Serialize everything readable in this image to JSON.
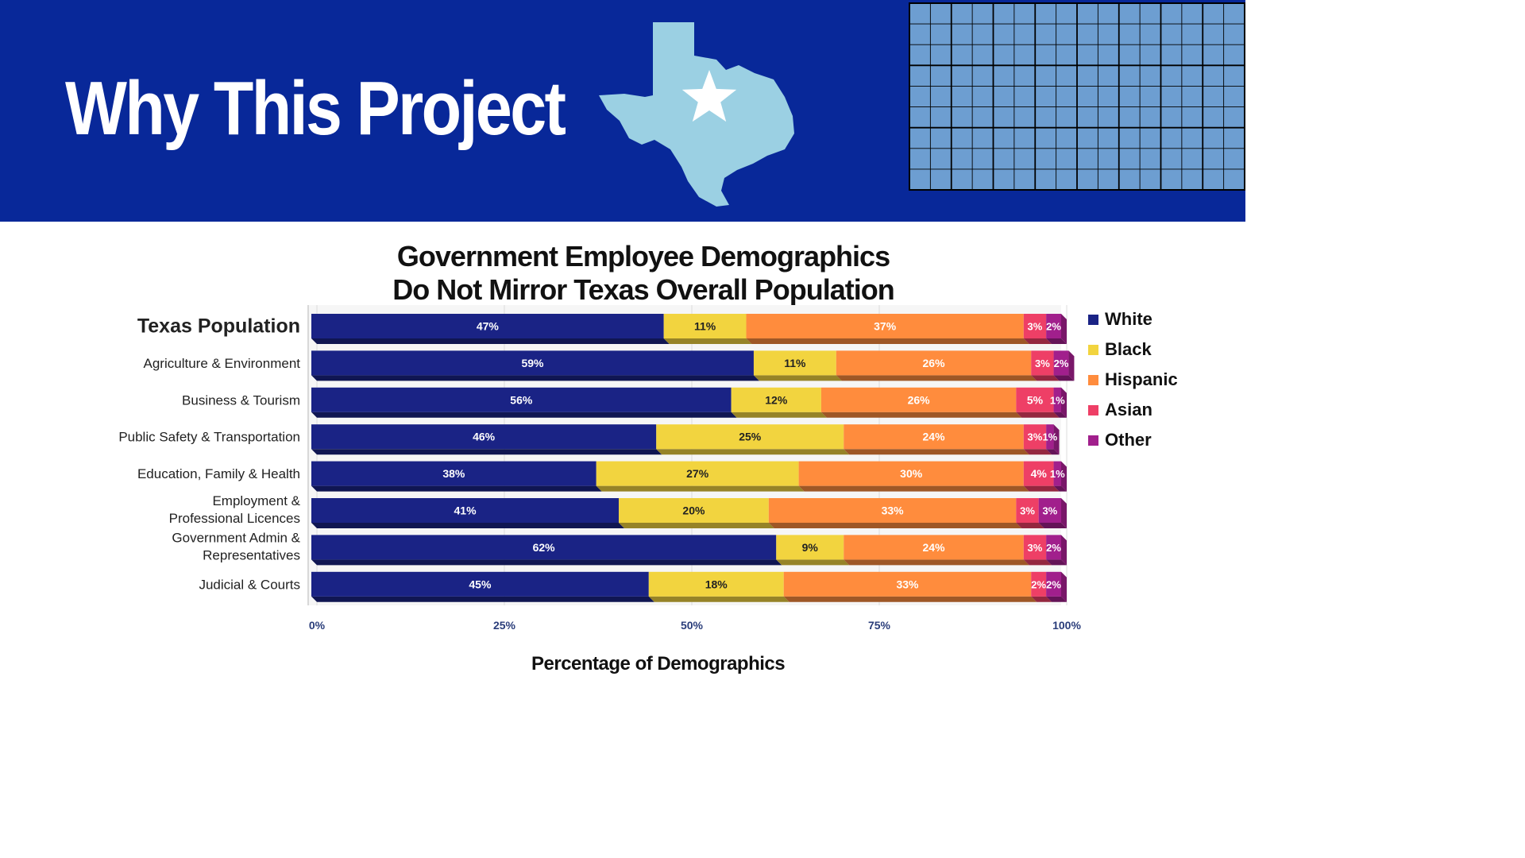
{
  "header": {
    "title": "Why This Project"
  },
  "colors": {
    "header_bg": "#082899",
    "texas_map": "#9bd0e3",
    "grid_fill": "#6d9ed1"
  },
  "icons": {
    "state": "texas-map-icon",
    "star": "star-icon",
    "grid": "grid-icon"
  },
  "chart_data": {
    "type": "bar",
    "orientation": "horizontal",
    "stacked": true,
    "title_line1": "Government Employee Demographics",
    "title_line2": "Do Not Mirror Texas Overall Population",
    "xlabel": "Percentage of Demographics",
    "ylabel": "",
    "xlim": [
      0,
      100
    ],
    "xticks": [
      "0%",
      "25%",
      "50%",
      "75%",
      "100%"
    ],
    "legend_position": "right",
    "categories": [
      "Texas Population",
      "Agriculture & Environment",
      "Business & Tourism",
      "Public Safety & Transportation",
      "Education, Family & Health",
      "Employment & Professional Licences",
      "Government Admin & Representatives",
      "Judicial & Courts"
    ],
    "series": [
      {
        "name": "White",
        "color": "#1a2385",
        "values": [
          47,
          59,
          56,
          46,
          38,
          41,
          62,
          45
        ]
      },
      {
        "name": "Black",
        "color": "#f2d43f",
        "values": [
          11,
          11,
          12,
          25,
          27,
          20,
          9,
          18
        ]
      },
      {
        "name": "Hispanic",
        "color": "#ff8c3d",
        "values": [
          37,
          26,
          26,
          24,
          30,
          33,
          24,
          33
        ]
      },
      {
        "name": "Asian",
        "color": "#ee3f66",
        "values": [
          3,
          3,
          5,
          3,
          4,
          3,
          3,
          2
        ]
      },
      {
        "name": "Other",
        "color": "#a11f8c",
        "values": [
          2,
          2,
          1,
          1,
          1,
          3,
          2,
          2
        ]
      }
    ]
  }
}
